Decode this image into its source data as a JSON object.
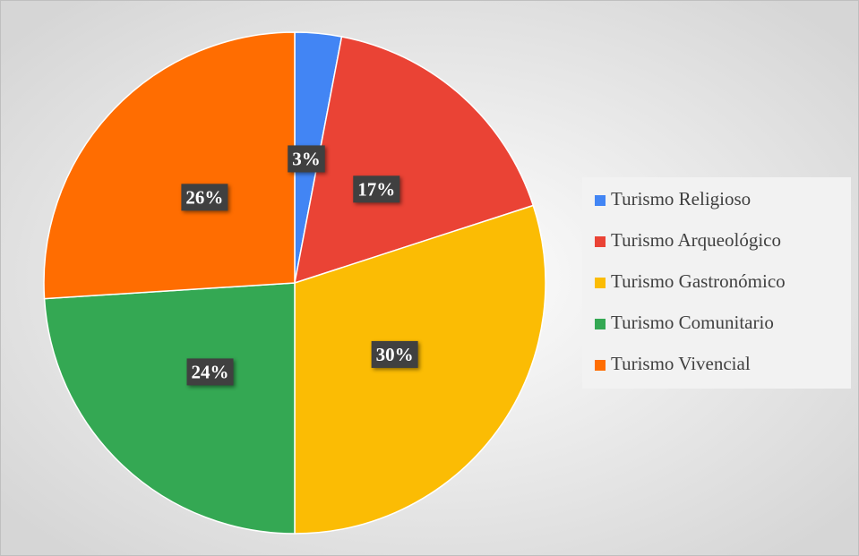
{
  "chart_data": {
    "type": "pie",
    "categories": [
      "Turismo Religioso",
      "Turismo Arqueológico",
      "Turismo Gastronómico",
      "Turismo Comunitario",
      "Turismo Vivencial"
    ],
    "values": [
      3,
      17,
      30,
      24,
      26
    ],
    "value_labels": [
      "3%",
      "17%",
      "30%",
      "24%",
      "26%"
    ],
    "colors": [
      "#4285f4",
      "#ea4335",
      "#fbbc04",
      "#34a853",
      "#ff6d01"
    ],
    "legend": "right"
  }
}
